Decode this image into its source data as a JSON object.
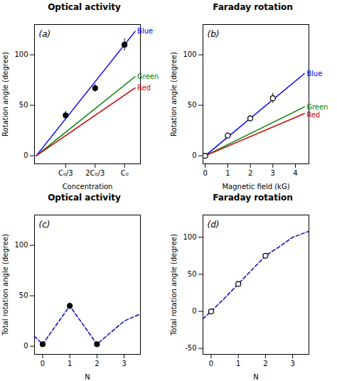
{
  "chart_data": [
    {
      "type": "line",
      "title": "Optical activity",
      "xlabel": "Concentration",
      "ylabel": "Rotation angle (degree)",
      "annotations": [
        "(a)"
      ],
      "xlim": [
        -0.02,
        1.18
      ],
      "ylim": [
        -8,
        130
      ],
      "xticks": [
        {
          "value": 0.333,
          "label": "C₀/3"
        },
        {
          "value": 0.667,
          "label": "2C₀/3"
        },
        {
          "value": 1.0,
          "label": "C₀"
        }
      ],
      "yticks": [
        0,
        50,
        100
      ],
      "series": [
        {
          "name": "Blue",
          "color": "#0000ff",
          "x": [
            0,
            1.12
          ],
          "values": [
            0,
            123.2
          ]
        },
        {
          "name": "Green",
          "color": "#008000",
          "x": [
            0,
            1.12
          ],
          "values": [
            0,
            78.4
          ]
        },
        {
          "name": "Red",
          "color": "#cc0000",
          "x": [
            0,
            1.12
          ],
          "values": [
            0,
            67.2
          ]
        },
        {
          "type": "scatter",
          "marker": "circle",
          "color": "#000000",
          "x": [
            0.333,
            0.667,
            1.0
          ],
          "values": [
            40,
            67,
            110
          ],
          "error": [
            4,
            4,
            6
          ]
        }
      ]
    },
    {
      "type": "line",
      "title": "Faraday rotation",
      "xlabel": "Magnetic field (kG)",
      "ylabel": "Rotation angle (degree)",
      "annotations": [
        "(b)"
      ],
      "xlim": [
        -0.1,
        4.6
      ],
      "ylim": [
        -8,
        130
      ],
      "xticks": [
        0,
        1,
        2,
        3,
        4
      ],
      "yticks": [
        0,
        50,
        100
      ],
      "series": [
        {
          "name": "Blue",
          "color": "#0000ff",
          "x": [
            0,
            4.4
          ],
          "values": [
            0,
            81.4
          ]
        },
        {
          "name": "Green",
          "color": "#008000",
          "x": [
            0,
            4.4
          ],
          "values": [
            0,
            48.4
          ]
        },
        {
          "name": "Red",
          "color": "#cc0000",
          "x": [
            0,
            4.4
          ],
          "values": [
            0,
            41.8
          ]
        },
        {
          "type": "scatter",
          "marker": "open-circle",
          "color": "#000000",
          "x": [
            0,
            1,
            2,
            3
          ],
          "values": [
            0,
            20,
            37,
            57
          ],
          "error": [
            2,
            3,
            3,
            5
          ]
        }
      ]
    },
    {
      "type": "line",
      "title": "Optical activity",
      "xlabel": "N",
      "ylabel": "Total rotation angle (degree)",
      "annotations": [
        "(c)"
      ],
      "xlim": [
        -0.3,
        3.6
      ],
      "ylim": [
        -8,
        130
      ],
      "xticks": [
        0,
        1,
        2,
        3
      ],
      "yticks": [
        0,
        50,
        100
      ],
      "series": [
        {
          "line_style": "dashed",
          "color": "#0000cc",
          "x": [
            -0.3,
            0,
            1,
            2,
            3,
            3.6
          ],
          "values": [
            10,
            2,
            40,
            2,
            25,
            32
          ]
        },
        {
          "type": "scatter",
          "marker": "circle",
          "color": "#000000",
          "x": [
            0,
            1,
            2
          ],
          "values": [
            2,
            40,
            2
          ],
          "error": [
            2,
            3,
            2
          ]
        }
      ]
    },
    {
      "type": "line",
      "title": "Faraday rotation",
      "xlabel": "N",
      "ylabel": "Total rotation angle (degree)",
      "annotations": [
        "(d)"
      ],
      "xlim": [
        -0.3,
        3.6
      ],
      "ylim": [
        -58,
        130
      ],
      "xticks": [
        0,
        1,
        2,
        3
      ],
      "yticks": [
        -50,
        0,
        50,
        100
      ],
      "series": [
        {
          "line_style": "dashed",
          "color": "#0000cc",
          "x": [
            -0.3,
            0,
            0.5,
            1,
            1.5,
            2,
            2.5,
            3,
            3.6
          ],
          "values": [
            -10,
            0,
            18,
            37,
            56,
            75,
            87,
            100,
            108
          ]
        },
        {
          "type": "scatter",
          "marker": "open-circle",
          "color": "#000000",
          "x": [
            0,
            1,
            2
          ],
          "values": [
            0,
            37,
            75
          ],
          "error": [
            1,
            3,
            3
          ]
        }
      ]
    }
  ]
}
